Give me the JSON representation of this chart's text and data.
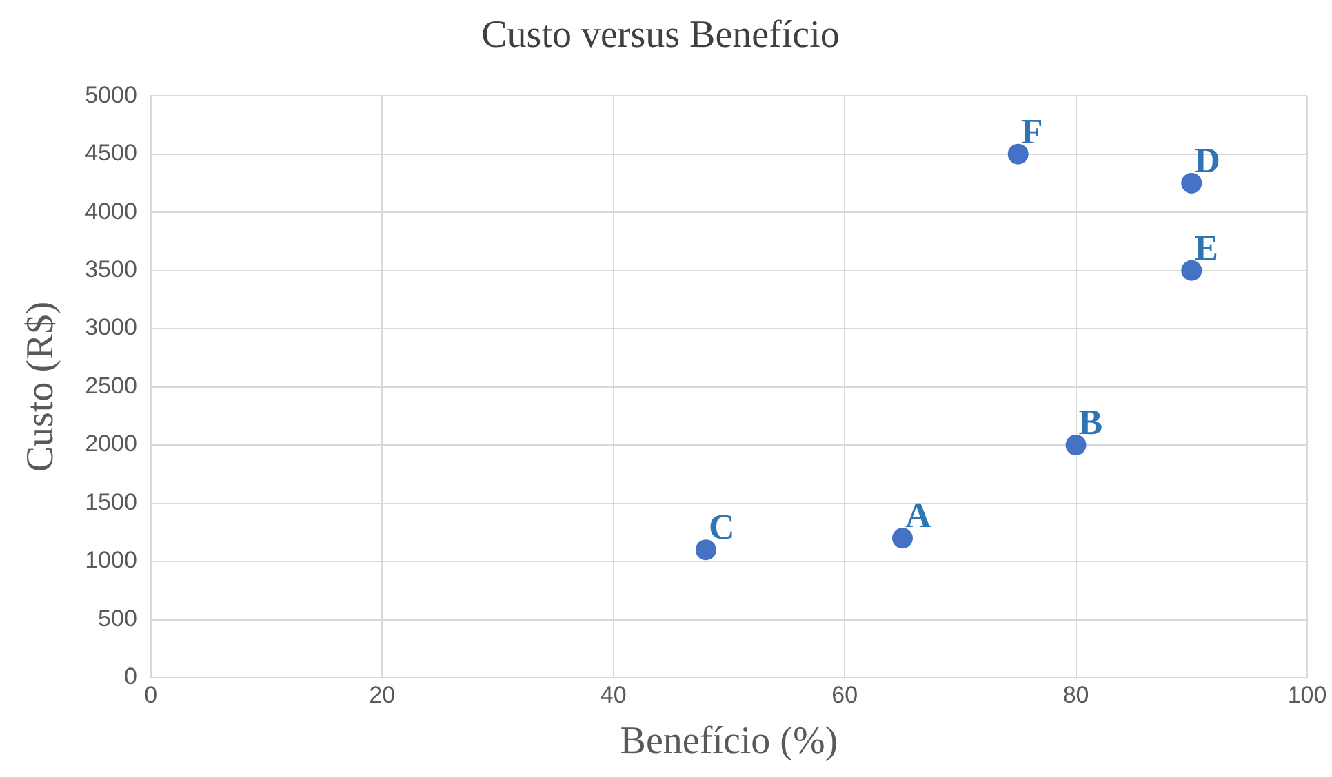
{
  "chart_data": {
    "type": "scatter",
    "title": "Custo versus Benefício",
    "xlabel": "Benefício (%)",
    "ylabel": "Custo (R$)",
    "x": [
      65,
      80,
      48,
      90,
      90,
      75
    ],
    "values": [
      1200,
      2000,
      1100,
      4250,
      3500,
      4500
    ],
    "color": "#4472c4",
    "marker": "circle",
    "xlim": [
      0,
      100
    ],
    "xticks": [
      0,
      20,
      40,
      60,
      80,
      100
    ],
    "ylim": [
      0,
      5000
    ],
    "yticks": [
      0,
      500,
      1000,
      1500,
      2000,
      2500,
      3000,
      3500,
      4000,
      4500,
      5000
    ],
    "grid": true,
    "legend": false,
    "annotations": [
      {
        "text": "A",
        "x": 65,
        "y": 1200
      },
      {
        "text": "B",
        "x": 80,
        "y": 2000
      },
      {
        "text": "C",
        "x": 48,
        "y": 1100
      },
      {
        "text": "D",
        "x": 90,
        "y": 4250
      },
      {
        "text": "E",
        "x": 90,
        "y": 3500
      },
      {
        "text": "F",
        "x": 75,
        "y": 4500
      }
    ]
  }
}
